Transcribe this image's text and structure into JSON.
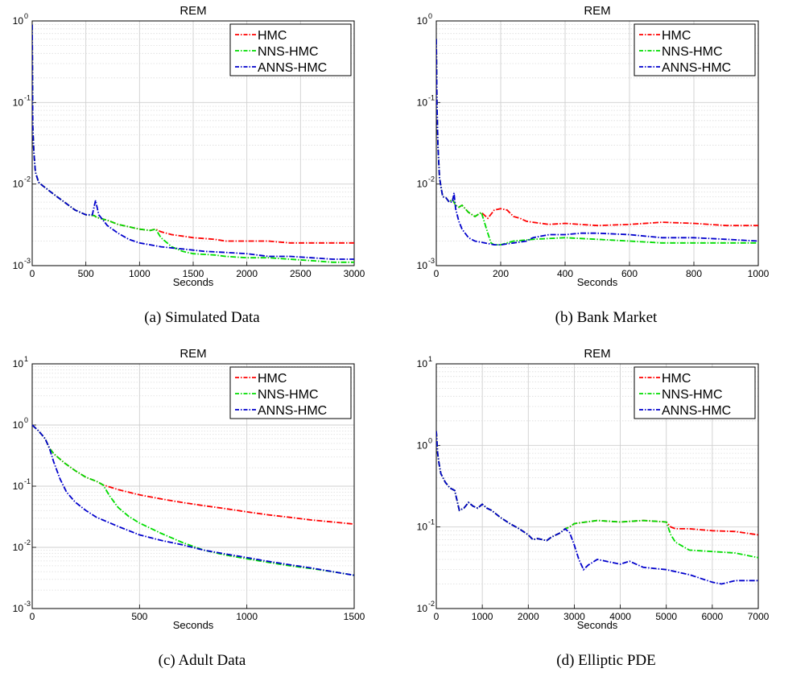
{
  "chart_data": [
    {
      "type": "line",
      "title": "REM",
      "xlabel": "Seconds",
      "ylabel": "",
      "xlim": [
        0,
        3000
      ],
      "ylim": [
        0.001,
        1
      ],
      "yscale": "log",
      "grid": true,
      "legend_position": "top-right",
      "xticks": [
        0,
        500,
        1000,
        1500,
        2000,
        2500,
        3000
      ],
      "yticks": [
        {
          "base": "10",
          "exp": "-3",
          "value": 0.001
        },
        {
          "base": "10",
          "exp": "-2",
          "value": 0.01
        },
        {
          "base": "10",
          "exp": "-1",
          "value": 0.1
        },
        {
          "base": "10",
          "exp": "0",
          "value": 1
        }
      ],
      "caption": "(a) Simulated Data",
      "series": [
        {
          "name": "HMC",
          "color": "#ff0000",
          "x": [
            0,
            5,
            15,
            30,
            60,
            100,
            200,
            300,
            400,
            500,
            580,
            600,
            700,
            800,
            900,
            1000,
            1100,
            1150,
            1200,
            1300,
            1400,
            1500,
            1700,
            1800,
            2000,
            2200,
            2400,
            2600,
            2800,
            3000
          ],
          "y": [
            0.9,
            0.05,
            0.025,
            0.014,
            0.0105,
            0.0095,
            0.0075,
            0.006,
            0.0048,
            0.0042,
            0.0041,
            0.0039,
            0.0036,
            0.0032,
            0.003,
            0.0028,
            0.0027,
            0.0028,
            0.0026,
            0.0024,
            0.0023,
            0.0022,
            0.0021,
            0.002,
            0.002,
            0.002,
            0.0019,
            0.0019,
            0.0019,
            0.0019
          ]
        },
        {
          "name": "NNS-HMC",
          "color": "#00dd00",
          "x": [
            0,
            5,
            15,
            30,
            60,
            100,
            200,
            300,
            400,
            500,
            580,
            600,
            700,
            800,
            900,
            1000,
            1100,
            1150,
            1200,
            1300,
            1400,
            1500,
            1700,
            1800,
            2000,
            2200,
            2400,
            2600,
            2800,
            3000
          ],
          "y": [
            0.9,
            0.05,
            0.025,
            0.014,
            0.0105,
            0.0095,
            0.0075,
            0.006,
            0.0048,
            0.0042,
            0.0041,
            0.0039,
            0.0036,
            0.0032,
            0.003,
            0.0028,
            0.0027,
            0.0028,
            0.0022,
            0.0017,
            0.0015,
            0.0014,
            0.00135,
            0.0013,
            0.00125,
            0.00125,
            0.0012,
            0.00115,
            0.0011,
            0.0011
          ]
        },
        {
          "name": "ANNS-HMC",
          "color": "#0000cc",
          "x": [
            0,
            5,
            15,
            30,
            60,
            100,
            200,
            300,
            400,
            500,
            560,
            590,
            620,
            700,
            800,
            900,
            1000,
            1200,
            1400,
            1600,
            1800,
            2000,
            2200,
            2400,
            2600,
            2800,
            3000
          ],
          "y": [
            0.9,
            0.05,
            0.025,
            0.014,
            0.0105,
            0.0095,
            0.0075,
            0.006,
            0.0048,
            0.0042,
            0.0042,
            0.0063,
            0.0042,
            0.0031,
            0.0025,
            0.0021,
            0.0019,
            0.0017,
            0.0016,
            0.0015,
            0.00145,
            0.0014,
            0.0013,
            0.0013,
            0.00125,
            0.0012,
            0.0012
          ]
        }
      ]
    },
    {
      "type": "line",
      "title": "REM",
      "xlabel": "Seconds",
      "ylabel": "",
      "xlim": [
        0,
        1000
      ],
      "ylim": [
        0.001,
        1
      ],
      "yscale": "log",
      "grid": true,
      "legend_position": "top-right",
      "xticks": [
        0,
        200,
        400,
        600,
        800,
        1000
      ],
      "yticks": [
        {
          "base": "10",
          "exp": "-3",
          "value": 0.001
        },
        {
          "base": "10",
          "exp": "-2",
          "value": 0.01
        },
        {
          "base": "10",
          "exp": "-1",
          "value": 0.1
        },
        {
          "base": "10",
          "exp": "0",
          "value": 1
        }
      ],
      "caption": "(b) Bank Market",
      "series": [
        {
          "name": "HMC",
          "color": "#ff0000",
          "x": [
            0,
            2,
            5,
            10,
            15,
            20,
            30,
            40,
            50,
            60,
            70,
            80,
            100,
            120,
            140,
            160,
            180,
            200,
            220,
            240,
            260,
            280,
            300,
            350,
            400,
            500,
            600,
            700,
            800,
            900,
            1000
          ],
          "y": [
            0.6,
            0.1,
            0.03,
            0.012,
            0.009,
            0.007,
            0.0068,
            0.006,
            0.0065,
            0.0055,
            0.0052,
            0.0055,
            0.0045,
            0.004,
            0.0045,
            0.0038,
            0.0048,
            0.005,
            0.0048,
            0.004,
            0.0038,
            0.0035,
            0.0034,
            0.0032,
            0.0033,
            0.0031,
            0.0032,
            0.0034,
            0.0033,
            0.0031,
            0.0031
          ]
        },
        {
          "name": "NNS-HMC",
          "color": "#00dd00",
          "x": [
            0,
            2,
            5,
            10,
            15,
            20,
            30,
            40,
            50,
            60,
            70,
            80,
            100,
            120,
            140,
            160,
            170,
            180,
            200,
            240,
            300,
            400,
            500,
            600,
            700,
            800,
            900,
            1000
          ],
          "y": [
            0.6,
            0.1,
            0.03,
            0.012,
            0.009,
            0.007,
            0.0068,
            0.006,
            0.0065,
            0.0055,
            0.0052,
            0.0055,
            0.0045,
            0.004,
            0.0045,
            0.0025,
            0.0019,
            0.0018,
            0.0018,
            0.002,
            0.0021,
            0.0022,
            0.0021,
            0.002,
            0.0019,
            0.0019,
            0.0019,
            0.0019
          ]
        },
        {
          "name": "ANNS-HMC",
          "color": "#0000cc",
          "x": [
            0,
            2,
            5,
            10,
            15,
            20,
            30,
            40,
            50,
            55,
            60,
            70,
            80,
            100,
            120,
            150,
            180,
            200,
            240,
            280,
            300,
            350,
            400,
            450,
            500,
            600,
            700,
            800,
            900,
            1000
          ],
          "y": [
            0.6,
            0.1,
            0.03,
            0.012,
            0.009,
            0.007,
            0.0068,
            0.006,
            0.006,
            0.0078,
            0.005,
            0.0035,
            0.0028,
            0.0022,
            0.002,
            0.0019,
            0.0018,
            0.0018,
            0.0019,
            0.002,
            0.0022,
            0.0024,
            0.0024,
            0.0025,
            0.0025,
            0.0024,
            0.0022,
            0.0022,
            0.0021,
            0.002
          ]
        }
      ]
    },
    {
      "type": "line",
      "title": "REM",
      "xlabel": "Seconds",
      "ylabel": "",
      "xlim": [
        0,
        1500
      ],
      "ylim": [
        0.001,
        10
      ],
      "yscale": "log",
      "grid": true,
      "legend_position": "top-right",
      "xticks": [
        0,
        500,
        1000,
        1500
      ],
      "yticks": [
        {
          "base": "10",
          "exp": "-3",
          "value": 0.001
        },
        {
          "base": "10",
          "exp": "-2",
          "value": 0.01
        },
        {
          "base": "10",
          "exp": "-1",
          "value": 0.1
        },
        {
          "base": "10",
          "exp": "0",
          "value": 1
        },
        {
          "base": "10",
          "exp": "1",
          "value": 10
        }
      ],
      "caption": "(c) Adult Data",
      "series": [
        {
          "name": "HMC",
          "color": "#ff0000",
          "x": [
            0,
            30,
            60,
            80,
            100,
            150,
            200,
            250,
            300,
            330,
            400,
            500,
            600,
            700,
            800,
            900,
            1000,
            1100,
            1200,
            1300,
            1400,
            1500
          ],
          "y": [
            1,
            0.8,
            0.6,
            0.42,
            0.34,
            0.24,
            0.18,
            0.14,
            0.12,
            0.105,
            0.088,
            0.072,
            0.062,
            0.054,
            0.048,
            0.043,
            0.038,
            0.034,
            0.031,
            0.028,
            0.026,
            0.024
          ]
        },
        {
          "name": "NNS-HMC",
          "color": "#00dd00",
          "x": [
            0,
            30,
            60,
            80,
            100,
            150,
            200,
            250,
            300,
            330,
            360,
            400,
            450,
            500,
            600,
            700,
            800,
            900,
            1000,
            1100,
            1200,
            1300,
            1400,
            1500
          ],
          "y": [
            1,
            0.8,
            0.6,
            0.42,
            0.34,
            0.24,
            0.18,
            0.14,
            0.12,
            0.105,
            0.07,
            0.045,
            0.032,
            0.025,
            0.017,
            0.012,
            0.009,
            0.0075,
            0.0065,
            0.0057,
            0.005,
            0.0045,
            0.004,
            0.0035
          ]
        },
        {
          "name": "ANNS-HMC",
          "color": "#0000cc",
          "x": [
            0,
            30,
            60,
            80,
            100,
            130,
            160,
            200,
            250,
            300,
            400,
            500,
            600,
            700,
            800,
            900,
            1000,
            1100,
            1200,
            1300,
            1400,
            1500
          ],
          "y": [
            1,
            0.8,
            0.6,
            0.42,
            0.25,
            0.13,
            0.08,
            0.055,
            0.04,
            0.031,
            0.022,
            0.016,
            0.013,
            0.011,
            0.009,
            0.0078,
            0.0068,
            0.0059,
            0.0052,
            0.0046,
            0.004,
            0.0035
          ]
        }
      ]
    },
    {
      "type": "line",
      "title": "REM",
      "xlabel": "Seconds",
      "ylabel": "",
      "xlim": [
        0,
        7000
      ],
      "ylim": [
        0.01,
        10
      ],
      "yscale": "log",
      "grid": true,
      "legend_position": "top-right",
      "xticks": [
        0,
        1000,
        2000,
        3000,
        4000,
        5000,
        6000,
        7000
      ],
      "yticks": [
        {
          "base": "10",
          "exp": "-2",
          "value": 0.01
        },
        {
          "base": "10",
          "exp": "-1",
          "value": 0.1
        },
        {
          "base": "10",
          "exp": "0",
          "value": 1
        },
        {
          "base": "10",
          "exp": "1",
          "value": 10
        }
      ],
      "caption": "(d) Elliptic PDE",
      "series": [
        {
          "name": "HMC",
          "color": "#ff0000",
          "x": [
            0,
            30,
            60,
            100,
            200,
            300,
            400,
            500,
            600,
            700,
            800,
            900,
            1000,
            1100,
            1200,
            1400,
            1600,
            1800,
            2000,
            2100,
            2200,
            2400,
            2500,
            2700,
            2800,
            2900,
            3000,
            3500,
            4000,
            4500,
            5000,
            5100,
            5200,
            5500,
            6000,
            6500,
            7000
          ],
          "y": [
            1.5,
            0.8,
            0.6,
            0.45,
            0.35,
            0.3,
            0.28,
            0.16,
            0.17,
            0.2,
            0.18,
            0.17,
            0.19,
            0.17,
            0.16,
            0.13,
            0.11,
            0.095,
            0.08,
            0.07,
            0.072,
            0.068,
            0.075,
            0.085,
            0.095,
            0.1,
            0.11,
            0.12,
            0.115,
            0.12,
            0.115,
            0.1,
            0.095,
            0.095,
            0.09,
            0.088,
            0.08
          ]
        },
        {
          "name": "NNS-HMC",
          "color": "#00dd00",
          "x": [
            0,
            30,
            60,
            100,
            200,
            300,
            400,
            500,
            600,
            700,
            800,
            900,
            1000,
            1100,
            1200,
            1400,
            1600,
            1800,
            2000,
            2100,
            2200,
            2400,
            2500,
            2700,
            2800,
            2900,
            3000,
            3500,
            4000,
            4500,
            5000,
            5100,
            5200,
            5500,
            6000,
            6500,
            7000
          ],
          "y": [
            1.5,
            0.8,
            0.6,
            0.45,
            0.35,
            0.3,
            0.28,
            0.16,
            0.17,
            0.2,
            0.18,
            0.17,
            0.19,
            0.17,
            0.16,
            0.13,
            0.11,
            0.095,
            0.08,
            0.07,
            0.072,
            0.068,
            0.075,
            0.085,
            0.095,
            0.1,
            0.11,
            0.12,
            0.115,
            0.12,
            0.115,
            0.08,
            0.065,
            0.052,
            0.05,
            0.048,
            0.042
          ]
        },
        {
          "name": "ANNS-HMC",
          "color": "#0000cc",
          "x": [
            0,
            30,
            60,
            100,
            200,
            300,
            400,
            500,
            600,
            700,
            800,
            900,
            1000,
            1100,
            1200,
            1400,
            1600,
            1800,
            2000,
            2100,
            2200,
            2400,
            2500,
            2700,
            2800,
            2900,
            3000,
            3100,
            3200,
            3300,
            3500,
            4000,
            4200,
            4500,
            5000,
            5500,
            6000,
            6200,
            6500,
            7000
          ],
          "y": [
            1.5,
            0.8,
            0.6,
            0.45,
            0.35,
            0.3,
            0.28,
            0.16,
            0.17,
            0.2,
            0.18,
            0.17,
            0.19,
            0.17,
            0.16,
            0.13,
            0.11,
            0.095,
            0.08,
            0.07,
            0.072,
            0.068,
            0.075,
            0.085,
            0.095,
            0.085,
            0.06,
            0.04,
            0.03,
            0.034,
            0.04,
            0.035,
            0.038,
            0.032,
            0.03,
            0.026,
            0.021,
            0.02,
            0.022,
            0.022
          ]
        }
      ]
    }
  ]
}
